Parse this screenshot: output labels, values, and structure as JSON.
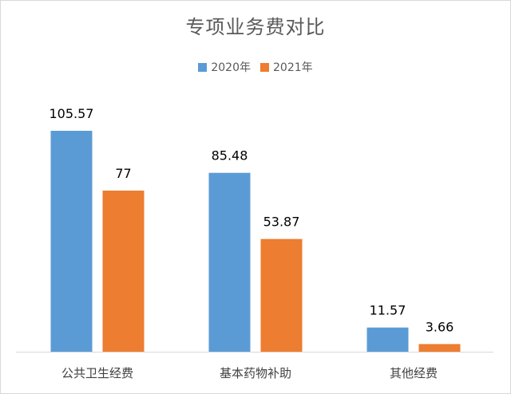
{
  "chart_data": {
    "type": "bar",
    "title": "专项业务费对比",
    "categories": [
      "公共卫生经费",
      "基本药物补助",
      "其他经费"
    ],
    "series": [
      {
        "name": "2020年",
        "values": [
          105.57,
          85.48,
          11.57
        ],
        "color": "#5b9bd5",
        "labels": [
          "105.57",
          "85.48",
          "11.57"
        ]
      },
      {
        "name": "2021年",
        "values": [
          77,
          53.87,
          3.66
        ],
        "color": "#ed7d31",
        "labels": [
          "77",
          "53.87",
          "3.66"
        ]
      }
    ],
    "legend_position": "top",
    "grid": false,
    "ylim": [
      0,
      105.57
    ]
  }
}
